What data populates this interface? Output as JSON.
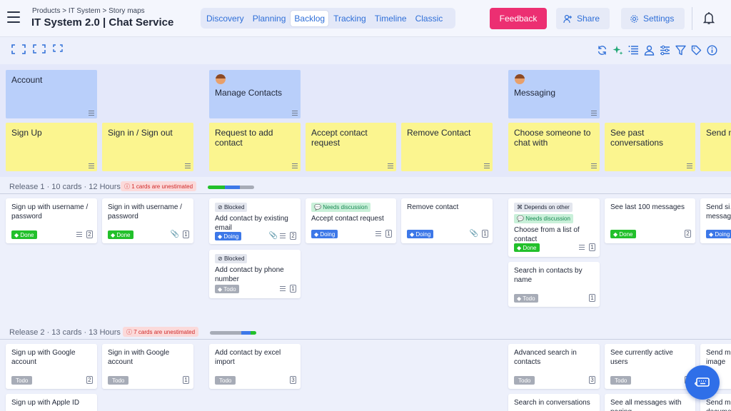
{
  "header": {
    "breadcrumb": "Products > IT System > Story maps",
    "title": "IT System 2.0 | Chat Service",
    "tabs": [
      "Discovery",
      "Planning",
      "Backlog",
      "Tracking",
      "Timeline",
      "Classic"
    ],
    "active_tab": "Backlog",
    "feedback_label": "Feedback",
    "share_label": "Share",
    "settings_label": "Settings"
  },
  "colors": {
    "accent": "#2f6fd8",
    "feedback": "#ec2f72",
    "activity": "#b9cffa",
    "task": "#fbf58f",
    "done": "#22c02b",
    "doing": "#3d78e8",
    "todo": "#a7acb7",
    "warning": "#d02a2a"
  },
  "toolbar_icons": [
    "refresh-icon",
    "sparkle-icon",
    "list-icon",
    "person-icon",
    "sliders-icon",
    "filter-icon",
    "tag-icon",
    "info-icon"
  ],
  "activities": [
    "Account",
    "Manage Contacts",
    "Messaging"
  ],
  "tasks": [
    "Sign Up",
    "Sign in / Sign out",
    "Request to add contact",
    "Accept contact request",
    "Remove Contact",
    "Choose someone to chat with",
    "See past conversations",
    "Send m… Receiv…"
  ],
  "release1": {
    "label": "Release 1 · 10 cards · 12 Hours",
    "warning": "1 cards are unestimated",
    "progress": {
      "done": 0.37,
      "doing": 0.32,
      "todo": 0.31
    }
  },
  "release2": {
    "label": "Release 2 · 13 cards · 13 Hours",
    "warning": "7 cards are unestimated",
    "progress": {
      "done": 0.12,
      "doing": 0.2,
      "todo": 0.68
    }
  },
  "r1cards": {
    "c1": {
      "text": "Sign up with username / password",
      "status": "Done",
      "count": "2"
    },
    "c2": {
      "text": "Sign in with username / password",
      "status": "Done",
      "count": "1"
    },
    "c3": {
      "tag": "Blocked",
      "text": "Add contact by existing email",
      "status": "Doing",
      "count": "2"
    },
    "c4": {
      "tag": "Blocked",
      "text": "Add contact by phone number",
      "status": "Todo",
      "count": "1"
    },
    "c5": {
      "tag": "Needs discussion",
      "text": "Accept contact request",
      "status": "Doing",
      "count": "1"
    },
    "c6": {
      "text": "Remove contact",
      "status": "Doing",
      "count": "1"
    },
    "c7": {
      "tag1": "Depends on other",
      "tag2": "Needs discussion",
      "text": "Choose from a list of contact",
      "status": "Done",
      "count": "1"
    },
    "c8": {
      "text": "Search in contacts by name",
      "status": "Todo",
      "count": "1"
    },
    "c9": {
      "text": "See last 100 messages",
      "status": "Done",
      "count": "2"
    },
    "c10": {
      "text": "Send si… messag…",
      "status": "Doing"
    }
  },
  "r2cards": {
    "c1": {
      "text": "Sign up with Google account",
      "status": "Todo",
      "count": "2"
    },
    "c2": {
      "text": "Sign in with Google account",
      "status": "Todo",
      "count": "1"
    },
    "c3": {
      "text": "Add contact by excel import",
      "status": "Todo",
      "count": "3"
    },
    "c4": {
      "text": "Advanced search in contacts",
      "status": "Todo",
      "count": "3"
    },
    "c5": {
      "text": "See currently active users",
      "status": "Todo",
      "count": "1"
    },
    "c6": {
      "text": "Send m… image"
    },
    "c7": {
      "text": "Sign up with Apple ID"
    },
    "c8": {
      "text": "Search in conversations"
    },
    "c9": {
      "text": "See all messages with paging"
    },
    "c10": {
      "text": "Send m… docume…"
    }
  }
}
